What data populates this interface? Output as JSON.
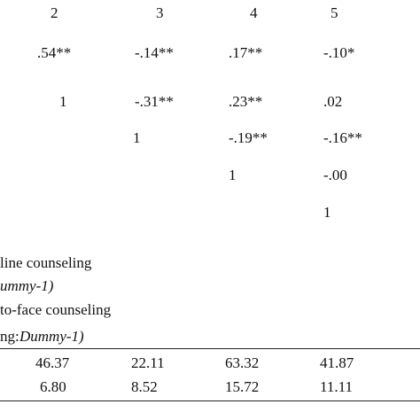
{
  "table": {
    "header": [
      "2",
      "3",
      "4",
      "5"
    ],
    "rows": [
      [
        ".54**",
        "-.14**",
        ".17**",
        "-.10*"
      ],
      [
        "1",
        "-.31**",
        ".23**",
        ".02"
      ],
      [
        "1",
        "-.19**",
        "-.16**"
      ],
      [
        "1",
        "-.00"
      ],
      [
        "1"
      ]
    ],
    "notes": [
      {
        "text": "line counseling"
      },
      {
        "italic": "ummy-1)"
      },
      {
        "text": "to-face counseling"
      },
      {
        "text": "ng: ",
        "italic": "Dummy-1)"
      }
    ],
    "stats": [
      [
        "46.37",
        "22.11",
        "63.32",
        "41.87"
      ],
      [
        "6.80",
        "8.52",
        "15.72",
        "11.11"
      ]
    ]
  }
}
